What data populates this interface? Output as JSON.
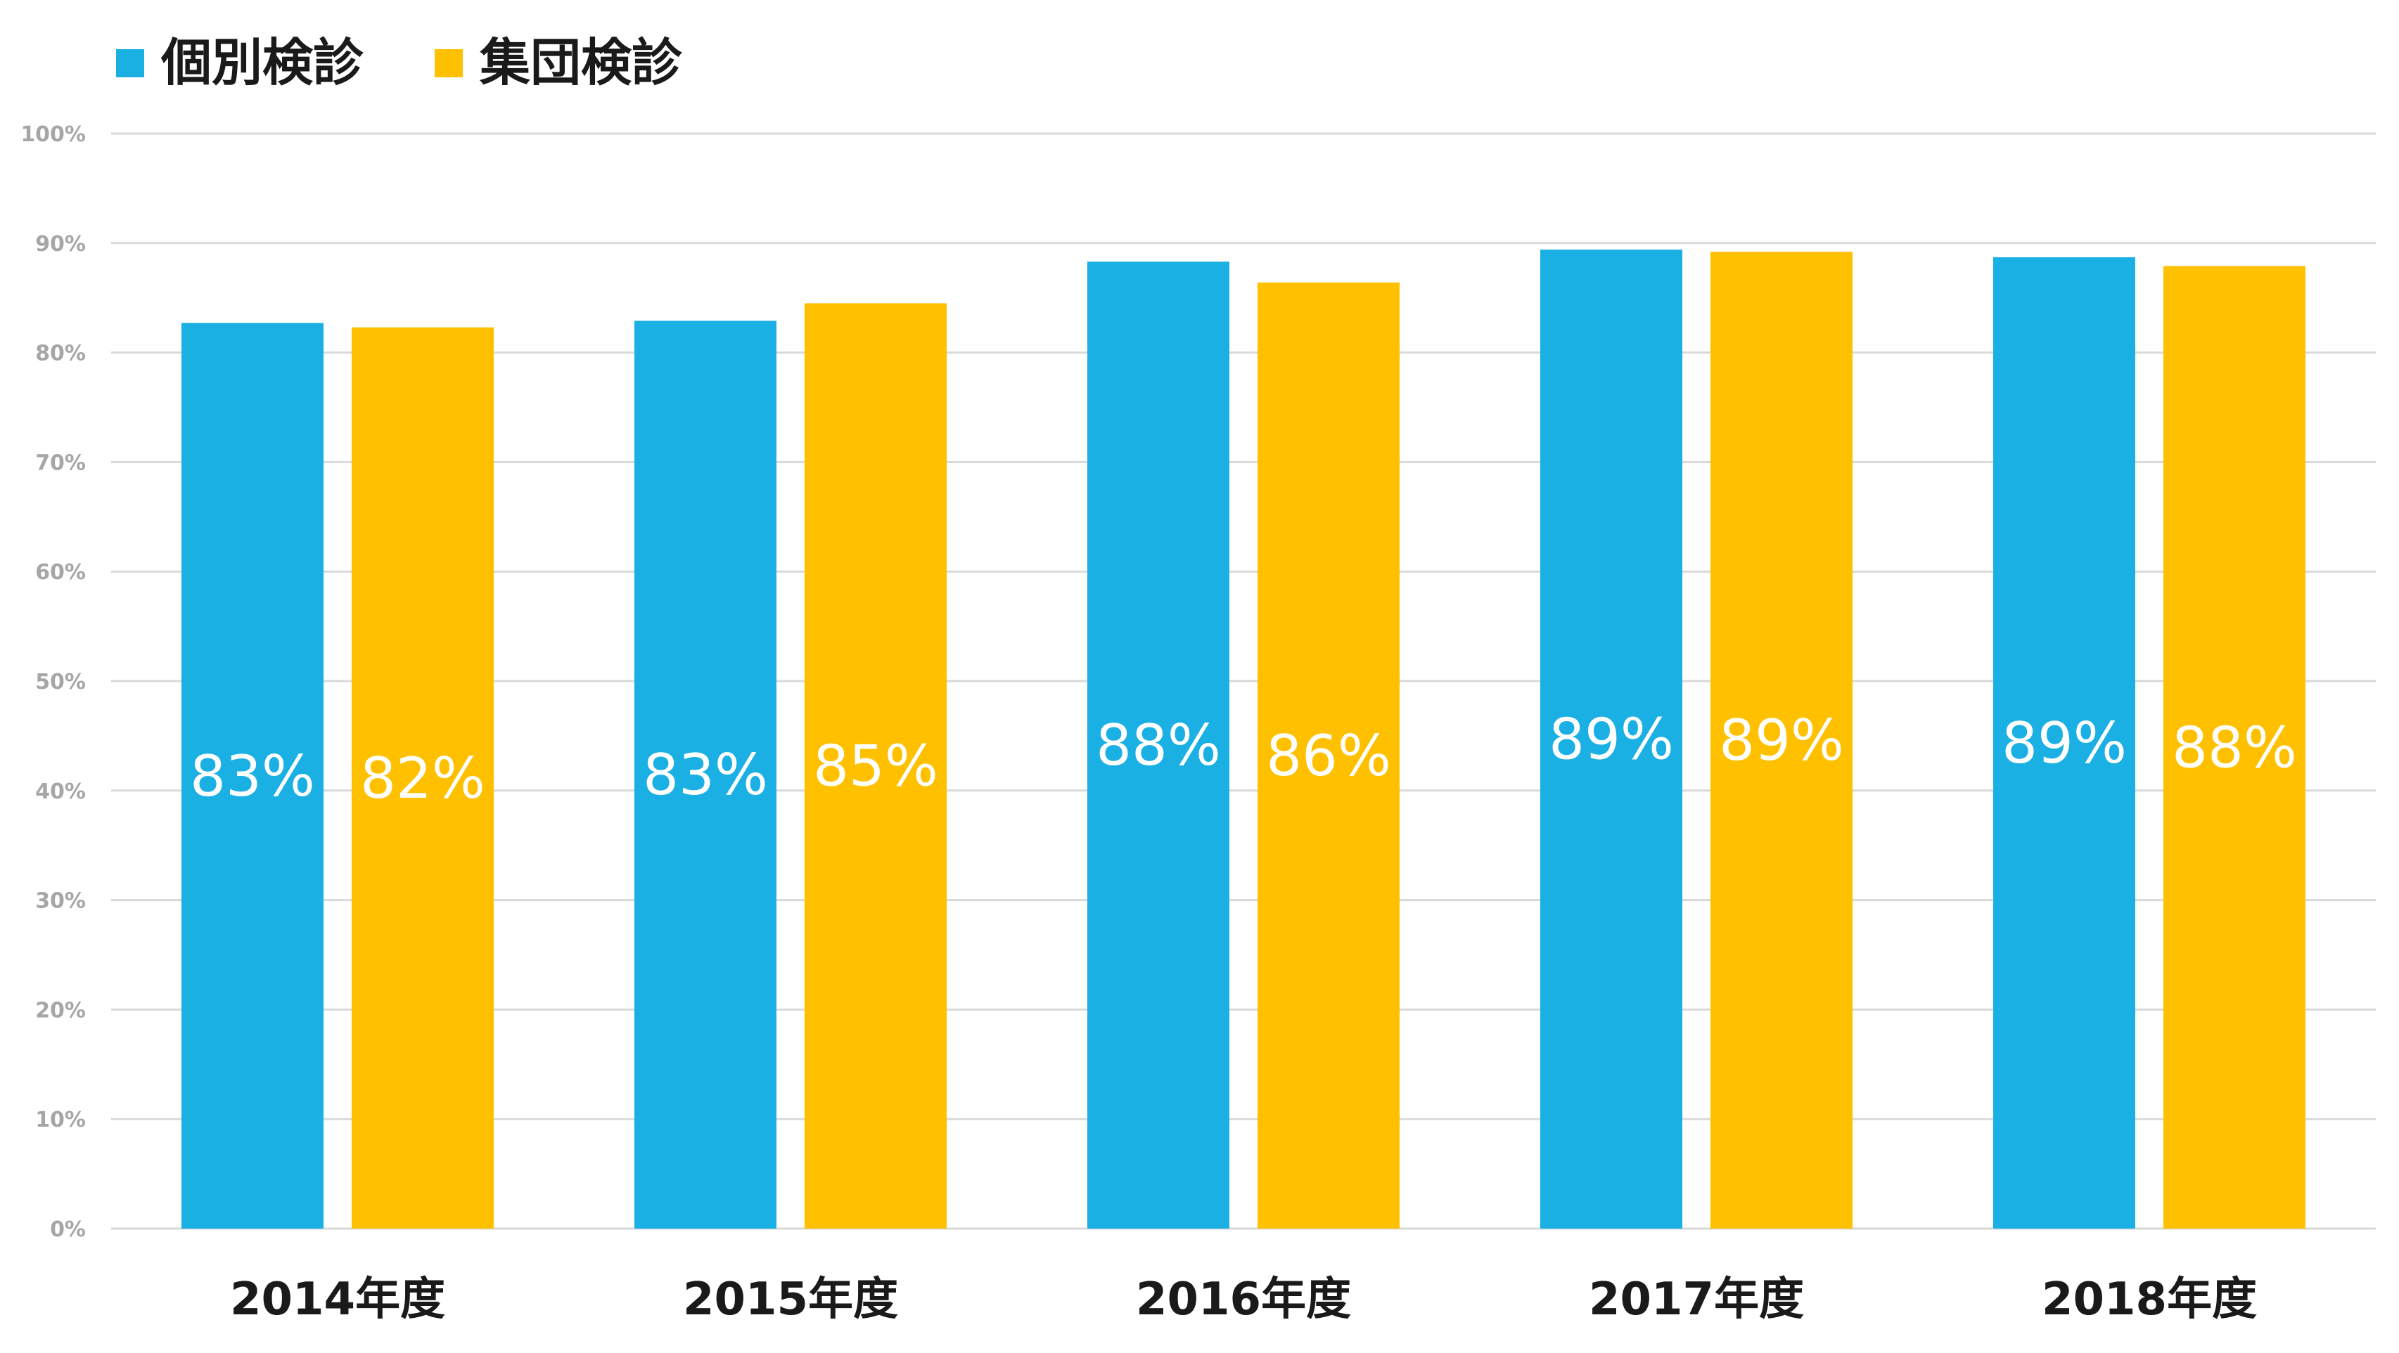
{
  "chart_data": {
    "type": "bar",
    "categories": [
      "2014年度",
      "2015年度",
      "2016年度",
      "2017年度",
      "2018年度"
    ],
    "series": [
      {
        "name": "個別検診",
        "color": "#1ab0e3",
        "values": [
          82.7,
          82.9,
          88.3,
          89.4,
          88.7
        ],
        "labels": [
          "83%",
          "83%",
          "88%",
          "89%",
          "89%"
        ]
      },
      {
        "name": "集団検診",
        "color": "#ffc000",
        "values": [
          82.3,
          84.5,
          86.4,
          89.2,
          87.9
        ],
        "labels": [
          "82%",
          "85%",
          "86%",
          "89%",
          "88%"
        ]
      }
    ],
    "ylim": [
      0,
      100
    ],
    "yticks": [
      "0%",
      "10%",
      "20%",
      "30%",
      "40%",
      "50%",
      "60%",
      "70%",
      "80%",
      "90%",
      "100%"
    ],
    "title": "",
    "xlabel": "",
    "ylabel": "",
    "grid": true,
    "gridline_color": "#d9d9d9",
    "legend_position": "top-left"
  }
}
